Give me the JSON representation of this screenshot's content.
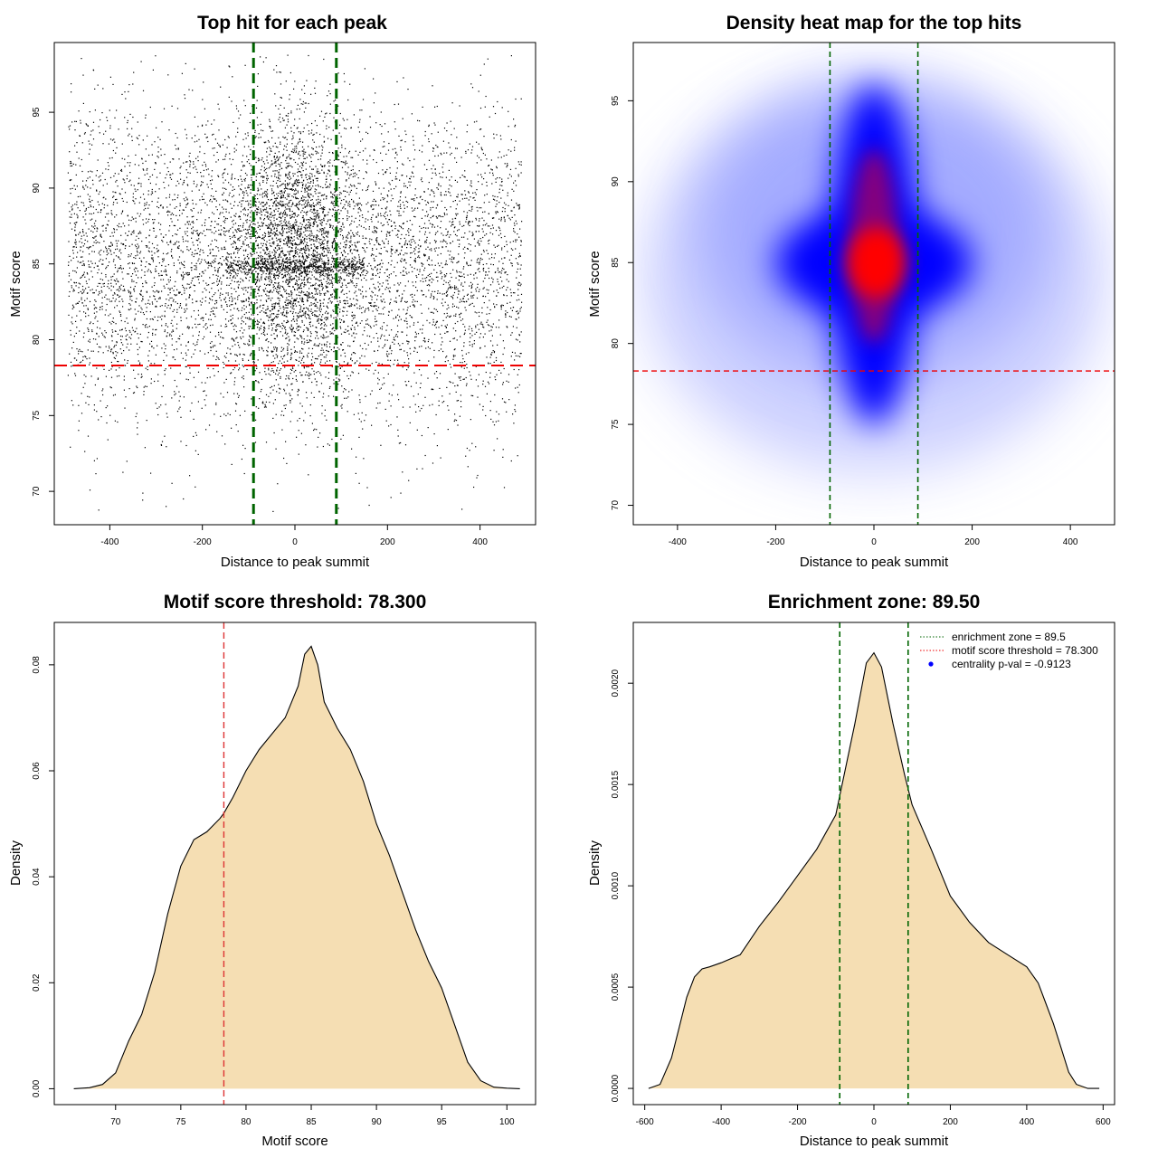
{
  "chart_data": [
    {
      "type": "scatter",
      "title": "Top hit for each peak",
      "xlabel": "Distance to peak summit",
      "ylabel": "Motif score",
      "xlim": [
        -520,
        520
      ],
      "ylim": [
        67.8,
        99.6
      ],
      "xticks": [
        -400,
        -200,
        0,
        200,
        400
      ],
      "yticks": [
        70,
        75,
        80,
        85,
        90,
        95
      ],
      "point_count_approx": 9000,
      "point_color": "#000000",
      "distribution": "uniform over x in [-490, 490]; y roughly normal centered at 85 (sd ~5), denser near x=0 and along y=85",
      "vlines": [
        -89.5,
        89.5
      ],
      "vline_color": "#006400",
      "hline": 78.3,
      "hline_color": "#ee0000"
    },
    {
      "type": "heatmap",
      "title": "Density heat map for the top hits",
      "xlabel": "Distance to peak summit",
      "ylabel": "Motif score",
      "xlim": [
        -490,
        490
      ],
      "ylim": [
        68.8,
        98.6
      ],
      "xticks": [
        -400,
        -200,
        0,
        200,
        400
      ],
      "yticks": [
        70,
        75,
        80,
        85,
        90,
        95
      ],
      "colors": [
        "#ffffff",
        "#0000ff",
        "#ff0000"
      ],
      "peak": {
        "x": 5,
        "y": 85
      },
      "vlines": [
        -89.5,
        89.5
      ],
      "vline_color": "#006400",
      "hline": 78.3,
      "hline_color": "#ee0000"
    },
    {
      "type": "area",
      "title": "Motif score threshold: 78.300",
      "xlabel": "Motif score",
      "ylabel": "Density",
      "xlim": [
        65.3,
        102.2
      ],
      "ylim": [
        -0.003,
        0.088
      ],
      "xticks": [
        70,
        75,
        80,
        85,
        90,
        95,
        100
      ],
      "yticks": [
        0.0,
        0.02,
        0.04,
        0.06,
        0.08
      ],
      "ytick_labels": [
        "0.00",
        "0.02",
        "0.04",
        "0.06",
        "0.08"
      ],
      "fill_color": "#f5deb3",
      "x": [
        66.8,
        68,
        69,
        70,
        70.5,
        71,
        72,
        73,
        74,
        75,
        76,
        77,
        78,
        78.3,
        79,
        80,
        81,
        82,
        83,
        84,
        84.5,
        85,
        85.5,
        86,
        87,
        88,
        89,
        90,
        91,
        92,
        93,
        94,
        95,
        96,
        97,
        98,
        99,
        100,
        101
      ],
      "y": [
        0.0,
        0.0002,
        0.0008,
        0.003,
        0.006,
        0.009,
        0.014,
        0.022,
        0.033,
        0.042,
        0.047,
        0.0485,
        0.051,
        0.052,
        0.055,
        0.06,
        0.064,
        0.067,
        0.07,
        0.076,
        0.082,
        0.0835,
        0.08,
        0.073,
        0.068,
        0.064,
        0.058,
        0.05,
        0.044,
        0.037,
        0.03,
        0.024,
        0.019,
        0.012,
        0.005,
        0.0015,
        0.0003,
        0.0001,
        0.0
      ],
      "vline": 78.3,
      "vline_color": "#dd3333"
    },
    {
      "type": "area",
      "title": "Enrichment zone: 89.50",
      "xlabel": "Distance to peak summit",
      "ylabel": "Density",
      "xlim": [
        -630,
        630
      ],
      "ylim": [
        -8e-05,
        0.0023
      ],
      "xticks": [
        -600,
        -400,
        -200,
        0,
        200,
        400,
        600
      ],
      "yticks": [
        0.0,
        0.0005,
        0.001,
        0.0015,
        0.002
      ],
      "ytick_labels": [
        "0.0000",
        "0.0005",
        "0.0010",
        "0.0015",
        "0.0020"
      ],
      "fill_color": "#f5deb3",
      "x": [
        -590,
        -560,
        -530,
        -510,
        -490,
        -470,
        -450,
        -430,
        -400,
        -350,
        -300,
        -250,
        -200,
        -150,
        -100,
        -50,
        -20,
        0,
        20,
        50,
        80,
        100,
        150,
        200,
        250,
        300,
        350,
        400,
        430,
        450,
        470,
        490,
        510,
        530,
        560,
        590
      ],
      "y": [
        0.0,
        2e-05,
        0.00015,
        0.0003,
        0.00045,
        0.00055,
        0.00059,
        0.0006,
        0.00062,
        0.00066,
        0.0008,
        0.00092,
        0.00105,
        0.00118,
        0.00135,
        0.0018,
        0.0021,
        0.00215,
        0.00208,
        0.0018,
        0.00155,
        0.0014,
        0.00118,
        0.00095,
        0.00082,
        0.00072,
        0.00066,
        0.0006,
        0.00052,
        0.00042,
        0.00032,
        0.0002,
        8e-05,
        2e-05,
        0.0,
        0.0
      ],
      "vlines": [
        -89.5,
        89.5
      ],
      "vline_color": "#006400",
      "legend": {
        "position": "top-right",
        "entries": [
          {
            "label": "enrichment zone = 89.5",
            "color": "#006400",
            "kind": "dotted-line"
          },
          {
            "label": "motif score threshold = 78.300",
            "color": "#ee0000",
            "kind": "dotted-line"
          },
          {
            "label": "centrality p-val = -0.9123",
            "color": "#0000ff",
            "kind": "point"
          }
        ]
      }
    }
  ]
}
